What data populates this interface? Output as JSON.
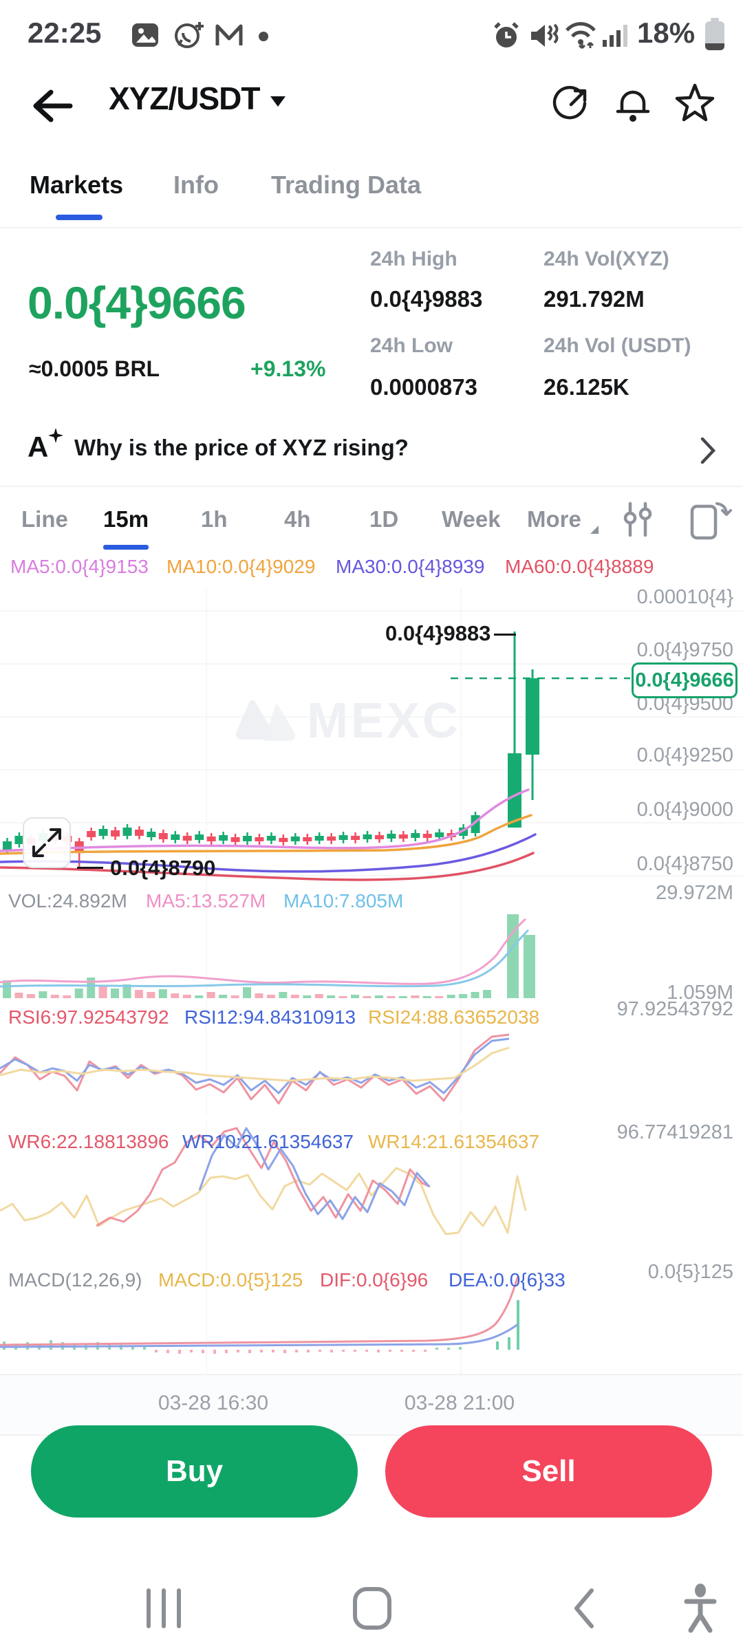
{
  "status_bar": {
    "time": "22:25",
    "battery_pct": "18%"
  },
  "header": {
    "pair": "XYZ/USDT"
  },
  "tabs": [
    {
      "label": "Markets",
      "active": true
    },
    {
      "label": "Info",
      "active": false
    },
    {
      "label": "Trading Data",
      "active": false
    }
  ],
  "ticker": {
    "price": "0.0{4}9666",
    "approx": "≈0.0005 BRL",
    "change": "+9.13%",
    "stats": [
      {
        "label": "24h High",
        "value": "0.0{4}9883"
      },
      {
        "label": "24h Vol(XYZ)",
        "value": "291.792M"
      },
      {
        "label": "24h Low",
        "value": "0.0000873"
      },
      {
        "label": "24h Vol (USDT)",
        "value": "26.125K"
      }
    ]
  },
  "ai_banner": {
    "icon_letter": "A",
    "question": "Why is the price of XYZ rising?"
  },
  "chart_toolbar": {
    "items": [
      {
        "label": "Line",
        "active": false
      },
      {
        "label": "15m",
        "active": true
      },
      {
        "label": "1h",
        "active": false
      },
      {
        "label": "4h",
        "active": false
      },
      {
        "label": "1D",
        "active": false
      },
      {
        "label": "Week",
        "active": false
      },
      {
        "label": "More",
        "active": false
      }
    ]
  },
  "main_chart": {
    "ma_legend": [
      {
        "label": "MA5:0.0{4}9153",
        "color": "#d97ce0"
      },
      {
        "label": "MA10:0.0{4}9029",
        "color": "#f0a43c"
      },
      {
        "label": "MA30:0.0{4}8939",
        "color": "#6456dd"
      },
      {
        "label": "MA60:0.0{4}8889",
        "color": "#e05264"
      }
    ],
    "y_labels": [
      "0.00010{4}",
      "0.0{4}9750",
      "0.0{4}9500",
      "0.0{4}9250",
      "0.0{4}9000",
      "0.0{4}8750"
    ],
    "high_label": "0.0{4}9883",
    "low_label": "0.0{4}8790",
    "price_tag": "0.0{4}9666",
    "watermark": "MEXC"
  },
  "volume": {
    "legend": [
      {
        "label": "VOL:24.892M",
        "color": "#8e939b"
      },
      {
        "label": "MA5:13.527M",
        "color": "#ef8fc5"
      },
      {
        "label": "MA10:7.805M",
        "color": "#6fc0e8"
      }
    ],
    "axis_top": "29.972M",
    "axis_bottom": "1.059M"
  },
  "rsi": {
    "legend": [
      {
        "label": "RSI6:97.92543792",
        "color": "#e4576a"
      },
      {
        "label": "RSI12:94.84310913",
        "color": "#3f63d8"
      },
      {
        "label": "RSI24:88.63652038",
        "color": "#e8b64a"
      }
    ],
    "axis": "97.92543792"
  },
  "wr": {
    "legend": [
      {
        "label": "WR6:22.18813896",
        "color": "#e4576a"
      },
      {
        "label": "WR10:21.61354637",
        "color": "#3f63d8"
      },
      {
        "label": "WR14:21.61354637",
        "color": "#e8b64a"
      }
    ],
    "axis": "96.77419281"
  },
  "macd": {
    "params": "MACD(12,26,9)",
    "legend": [
      {
        "label": "MACD:0.0{5}125",
        "color": "#e8b64a"
      },
      {
        "label": "DIF:0.0{6}96",
        "color": "#e4576a"
      },
      {
        "label": "DEA:0.0{6}33",
        "color": "#3f63d8"
      }
    ],
    "axis": "0.0{5}125"
  },
  "x_axis": [
    "03-28 16:30",
    "03-28 21:00"
  ],
  "actions": {
    "buy": "Buy",
    "sell": "Sell"
  },
  "colors": {
    "up": "#14a56b",
    "down": "#f4455c",
    "accent": "#2b5ce0",
    "price_green": "#1ea35f"
  }
}
